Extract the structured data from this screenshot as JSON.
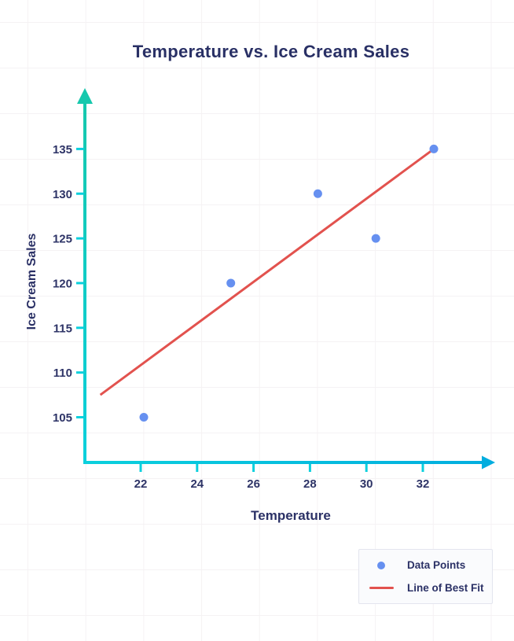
{
  "canvas": {
    "background_color": "#ffffff",
    "grid_line_color": "#f5f2f4"
  },
  "chart": {
    "title": "Temperature vs. Ice Cream Sales",
    "text_color": "#2b3166",
    "axis_teal_color": "#16c8ad",
    "axis_cyan_color": "#0bd0dd",
    "axis_blue_color": "#01addf",
    "point_color": "#6690f0",
    "fit_line_color": "#e2524e"
  },
  "chart_data": {
    "type": "scatter",
    "title": "Temperature vs. Ice Cream Sales",
    "xlabel": "Temperature",
    "ylabel": "Ice Cream Sales",
    "x": [
      22,
      25,
      28,
      30,
      32
    ],
    "y": [
      105,
      120,
      130,
      125,
      135
    ],
    "x_ticks": [
      22,
      24,
      26,
      28,
      30,
      32
    ],
    "y_ticks": [
      105,
      110,
      115,
      120,
      125,
      130,
      135
    ],
    "xlim": [
      20,
      34
    ],
    "ylim": [
      100,
      141
    ],
    "grid": false,
    "legend_position": "bottom-right",
    "best_fit_line": {
      "x": [
        20.5,
        32
      ],
      "y": [
        107.5,
        135
      ]
    },
    "series": [
      {
        "name": "Data Points",
        "type": "scatter",
        "color": "#6690f0"
      },
      {
        "name": "Line of Best Fit",
        "type": "line",
        "color": "#e2524e"
      }
    ]
  },
  "legend": {
    "items": [
      {
        "label": "Data Points",
        "marker": "dot",
        "color": "#6690f0"
      },
      {
        "label": "Line of Best Fit",
        "marker": "line",
        "color": "#e2524e"
      }
    ]
  }
}
